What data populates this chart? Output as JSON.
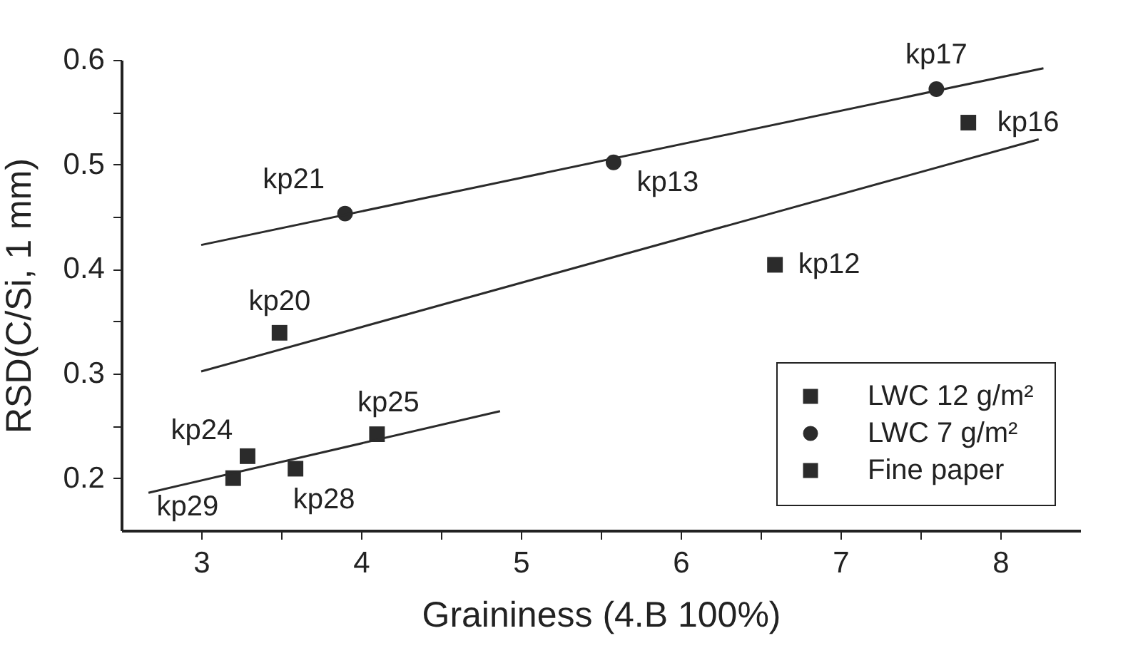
{
  "chart_data": {
    "type": "scatter",
    "xlabel": "Graininess (4.B 100%)",
    "ylabel": "RSD(C/Si, 1 mm)",
    "xlim": [
      2.5,
      8.5
    ],
    "ylim": [
      0.15,
      0.6
    ],
    "xticks": [
      3,
      {
        "value": 3.5,
        "label": null
      },
      4,
      {
        "value": 4.5,
        "label": null
      },
      5,
      {
        "value": 5.5,
        "label": null
      },
      6,
      {
        "value": 6.5,
        "label": null
      },
      7,
      {
        "value": 7.5,
        "label": null
      },
      8
    ],
    "yticks": [
      {
        "value": 0.2,
        "label": "0.2"
      },
      {
        "value": 0.25,
        "label": null
      },
      {
        "value": 0.3,
        "label": "0.3"
      },
      {
        "value": 0.35,
        "label": null
      },
      {
        "value": 0.4,
        "label": "0.4"
      },
      {
        "value": 0.45,
        "label": null
      },
      {
        "value": 0.5,
        "label": "0.5"
      },
      {
        "value": 0.55,
        "label": null
      },
      {
        "value": 0.6,
        "label": "0.6"
      }
    ],
    "grid": false,
    "legend": "bottom right",
    "series": [
      {
        "name": "LWC 12 g/m²",
        "marker": "square",
        "color": "#2b2b2b",
        "x": [
          7.8,
          6.59,
          3.49
        ],
        "values": [
          0.54,
          0.404,
          0.339
        ]
      },
      {
        "name": "LWC 7 g/m²",
        "marker": "circle",
        "color": "#2b2b2b",
        "x": [
          7.6,
          5.58,
          3.9
        ],
        "values": [
          0.572,
          0.502,
          0.453
        ]
      },
      {
        "name": "Fine paper",
        "marker": "square",
        "color": "#2b2b2b",
        "x": [
          3.29,
          4.1,
          3.59,
          3.2
        ],
        "values": [
          0.221,
          0.242,
          0.209,
          0.2
        ]
      },
      {
        "type": "line",
        "color": "#2b2b2b",
        "x": [
          3.0,
          8.27
        ],
        "values": [
          0.423,
          0.592
        ]
      },
      {
        "type": "line",
        "color": "#2b2b2b",
        "x": [
          3.0,
          8.24
        ],
        "values": [
          0.302,
          0.524
        ]
      },
      {
        "type": "line",
        "color": "#2b2b2b",
        "x": [
          2.67,
          4.87
        ],
        "values": [
          0.186,
          0.264
        ]
      }
    ],
    "annotations": [
      {
        "text": "kp17",
        "x": 7.6,
        "y": 0.572
      },
      {
        "text": "kp16",
        "x": 7.8,
        "y": 0.54
      },
      {
        "text": "kp21",
        "x": 3.9,
        "y": 0.453
      },
      {
        "text": "kp13",
        "x": 5.58,
        "y": 0.502
      },
      {
        "text": "kp12",
        "x": 6.59,
        "y": 0.404
      },
      {
        "text": "kp20",
        "x": 3.49,
        "y": 0.339
      },
      {
        "text": "kp25",
        "x": 4.1,
        "y": 0.242
      },
      {
        "text": "kp24",
        "x": 3.29,
        "y": 0.221
      },
      {
        "text": "kp28",
        "x": 3.59,
        "y": 0.209
      },
      {
        "text": "kp29",
        "x": 3.2,
        "y": 0.2
      }
    ]
  }
}
